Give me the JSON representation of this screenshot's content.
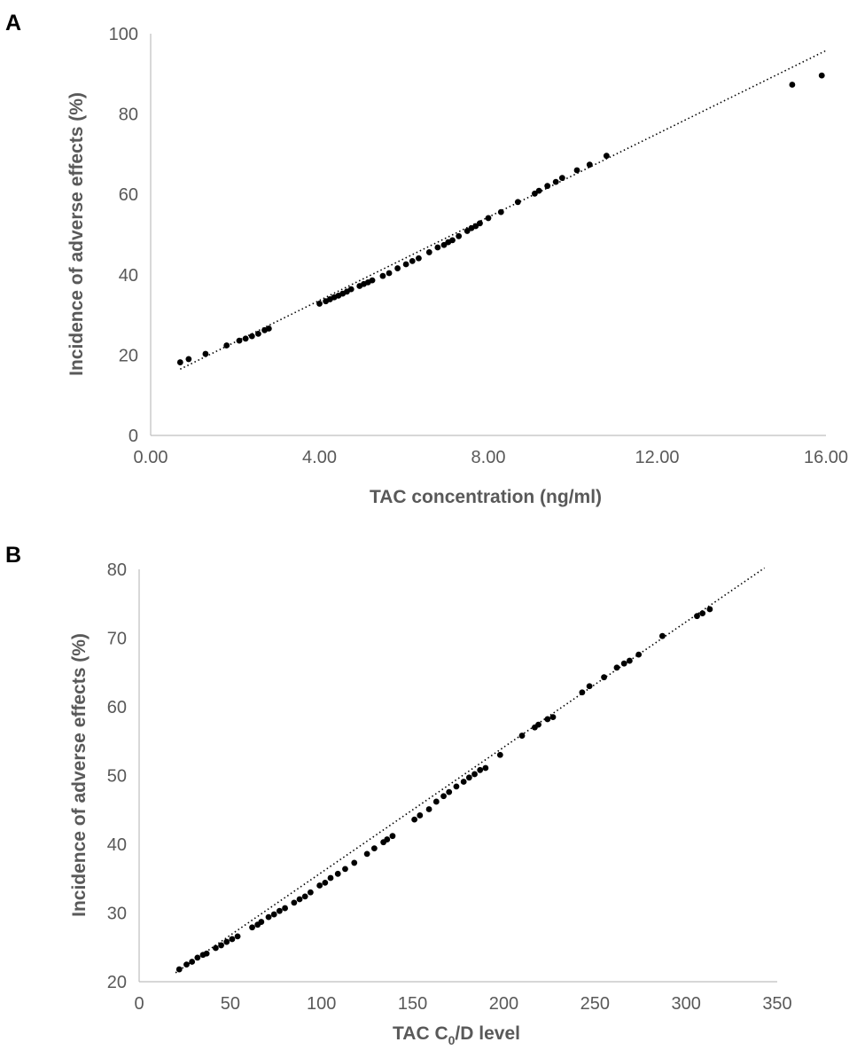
{
  "chart_data": [
    {
      "type": "scatter",
      "panel_label": "A",
      "xlabel": "TAC concentration (ng/ml)",
      "ylabel": "Incidence of adverse effects (%)",
      "xlim": [
        0,
        16
      ],
      "ylim": [
        0,
        100
      ],
      "xticks": [
        "0.00",
        "4.00",
        "8.00",
        "12.00",
        "16.00"
      ],
      "yticks": [
        "0",
        "20",
        "40",
        "60",
        "80",
        "100"
      ],
      "trendline": {
        "style": "dotted",
        "from": [
          0.7,
          16.5
        ],
        "to": [
          16.0,
          95.8
        ]
      },
      "points": [
        [
          0.7,
          18.2
        ],
        [
          0.9,
          19.0
        ],
        [
          1.3,
          20.3
        ],
        [
          1.8,
          22.4
        ],
        [
          2.1,
          23.6
        ],
        [
          2.25,
          24.1
        ],
        [
          2.4,
          24.7
        ],
        [
          2.55,
          25.3
        ],
        [
          2.7,
          26.2
        ],
        [
          2.8,
          26.6
        ],
        [
          4.0,
          32.8
        ],
        [
          4.15,
          33.4
        ],
        [
          4.25,
          33.9
        ],
        [
          4.35,
          34.4
        ],
        [
          4.45,
          34.8
        ],
        [
          4.55,
          35.3
        ],
        [
          4.65,
          35.8
        ],
        [
          4.75,
          36.4
        ],
        [
          4.95,
          37.2
        ],
        [
          5.05,
          37.7
        ],
        [
          5.15,
          38.1
        ],
        [
          5.25,
          38.6
        ],
        [
          5.5,
          39.7
        ],
        [
          5.65,
          40.4
        ],
        [
          5.85,
          41.6
        ],
        [
          6.05,
          42.6
        ],
        [
          6.2,
          43.4
        ],
        [
          6.35,
          44.1
        ],
        [
          6.6,
          45.6
        ],
        [
          6.8,
          46.8
        ],
        [
          6.95,
          47.4
        ],
        [
          7.05,
          48.1
        ],
        [
          7.15,
          48.6
        ],
        [
          7.3,
          49.6
        ],
        [
          7.5,
          50.9
        ],
        [
          7.6,
          51.6
        ],
        [
          7.7,
          52.1
        ],
        [
          7.8,
          52.8
        ],
        [
          8.0,
          54.1
        ],
        [
          8.3,
          55.6
        ],
        [
          8.7,
          58.1
        ],
        [
          9.1,
          60.2
        ],
        [
          9.2,
          60.9
        ],
        [
          9.4,
          62.1
        ],
        [
          9.6,
          63.1
        ],
        [
          9.75,
          64.1
        ],
        [
          10.1,
          66.0
        ],
        [
          10.4,
          67.4
        ],
        [
          10.8,
          69.6
        ],
        [
          15.2,
          87.3
        ],
        [
          15.9,
          89.6
        ]
      ]
    },
    {
      "type": "scatter",
      "panel_label": "B",
      "xlabel_main": "TAC C",
      "xlabel_sub": "0",
      "xlabel_rest": "/D level",
      "ylabel": "Incidence of adverse effects (%)",
      "xlim": [
        0,
        350
      ],
      "ylim": [
        20,
        80
      ],
      "xticks": [
        "0",
        "50",
        "100",
        "150",
        "200",
        "250",
        "300",
        "350"
      ],
      "yticks": [
        "20",
        "30",
        "40",
        "50",
        "60",
        "70",
        "80"
      ],
      "trendline": {
        "style": "dotted",
        "from": [
          20,
          21.3
        ],
        "to": [
          343,
          80.2
        ]
      },
      "points": [
        [
          22,
          21.8
        ],
        [
          26,
          22.5
        ],
        [
          29,
          22.9
        ],
        [
          32,
          23.5
        ],
        [
          35,
          23.9
        ],
        [
          37,
          24.1
        ],
        [
          42,
          24.9
        ],
        [
          45,
          25.3
        ],
        [
          48,
          25.8
        ],
        [
          51,
          26.2
        ],
        [
          54,
          26.6
        ],
        [
          62,
          27.9
        ],
        [
          65,
          28.3
        ],
        [
          67,
          28.7
        ],
        [
          71,
          29.4
        ],
        [
          74,
          29.8
        ],
        [
          77,
          30.3
        ],
        [
          80,
          30.7
        ],
        [
          85,
          31.5
        ],
        [
          88,
          32.0
        ],
        [
          91,
          32.4
        ],
        [
          94,
          33.0
        ],
        [
          99,
          34.0
        ],
        [
          102,
          34.4
        ],
        [
          105,
          35.1
        ],
        [
          109,
          35.7
        ],
        [
          113,
          36.4
        ],
        [
          118,
          37.3
        ],
        [
          125,
          38.6
        ],
        [
          129,
          39.4
        ],
        [
          134,
          40.3
        ],
        [
          136,
          40.7
        ],
        [
          139,
          41.2
        ],
        [
          151,
          43.6
        ],
        [
          154,
          44.2
        ],
        [
          159,
          45.1
        ],
        [
          163,
          46.2
        ],
        [
          167,
          47.0
        ],
        [
          170,
          47.6
        ],
        [
          174,
          48.4
        ],
        [
          178,
          49.1
        ],
        [
          181,
          49.7
        ],
        [
          184,
          50.2
        ],
        [
          187,
          50.8
        ],
        [
          190,
          51.1
        ],
        [
          198,
          53.0
        ],
        [
          210,
          55.8
        ],
        [
          217,
          57.0
        ],
        [
          219,
          57.4
        ],
        [
          224,
          58.2
        ],
        [
          227,
          58.5
        ],
        [
          243,
          62.1
        ],
        [
          247,
          63.0
        ],
        [
          255,
          64.3
        ],
        [
          262,
          65.7
        ],
        [
          266,
          66.3
        ],
        [
          269,
          66.7
        ],
        [
          274,
          67.6
        ],
        [
          287,
          70.3
        ],
        [
          306,
          73.2
        ],
        [
          309,
          73.6
        ],
        [
          313,
          74.2
        ]
      ]
    }
  ]
}
